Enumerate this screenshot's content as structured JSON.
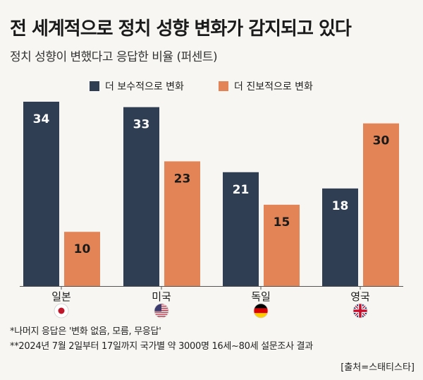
{
  "title": "전 세계적으로 정치 성향 변화가 감지되고 있다",
  "subtitle": "정치 성향이 변했다고 응답한 비율 (퍼센트)",
  "chart_data": {
    "type": "bar",
    "categories": [
      "일본",
      "미국",
      "독일",
      "영국"
    ],
    "flag_icons": [
      "japan-flag-icon",
      "usa-flag-icon",
      "germany-flag-icon",
      "uk-flag-icon"
    ],
    "series": [
      {
        "name": "더 보수적으로 변화",
        "values": [
          34,
          33,
          21,
          18
        ],
        "color": "#2f3e53"
      },
      {
        "name": "더 진보적으로 변화",
        "values": [
          10,
          23,
          15,
          30
        ],
        "color": "#e28456"
      }
    ],
    "ylim": [
      0,
      34
    ],
    "grid": false,
    "legend": "top"
  },
  "footnotes": [
    "*나머지 응답은 '변화 없음, 모름, 무응답'",
    "**2024년 7월 2일부터 17일까지 국가별 약 3000명 16세~80세 설문조사 결과"
  ],
  "source": "[출처=스태티스타]"
}
